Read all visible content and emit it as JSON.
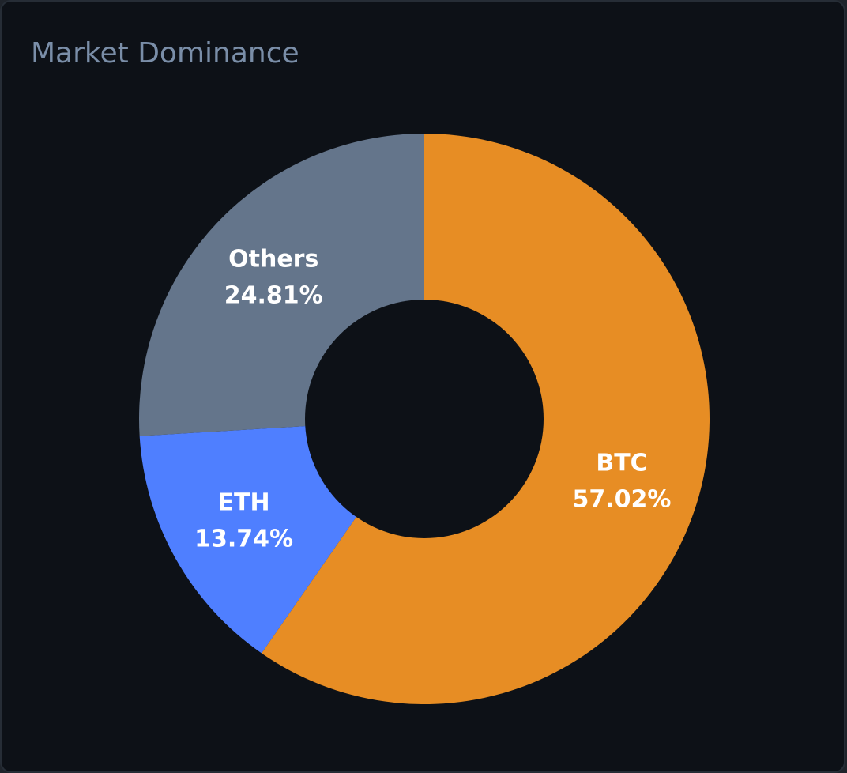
{
  "card": {
    "title": "Market Dominance"
  },
  "chart_data": {
    "type": "pie",
    "title": "Market Dominance",
    "donut": true,
    "slices": [
      {
        "name": "BTC",
        "value": 57.02,
        "label": "57.02%",
        "color": "#e78d24"
      },
      {
        "name": "ETH",
        "value": 13.74,
        "label": "13.74%",
        "color": "#4f7fff"
      },
      {
        "name": "Others",
        "value": 24.81,
        "label": "24.81%",
        "color": "#64758b"
      }
    ],
    "colors": {
      "card_background": "#0d1117",
      "hole": "#0d1117",
      "title": "#7a8ea8",
      "label": "#ffffff"
    }
  }
}
